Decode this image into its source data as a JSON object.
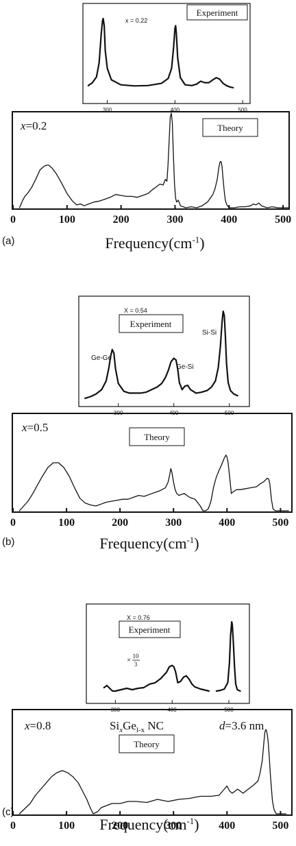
{
  "chart_data": [
    {
      "type": "line",
      "panel": "(a)",
      "role": "experiment",
      "sample_label": "x = 0.22",
      "box_label": "Experiment",
      "xlim": [
        265,
        510
      ],
      "xticks": [
        "300",
        "400",
        "500"
      ],
      "ylim": [
        0,
        1
      ],
      "grid": false,
      "series": [
        {
          "x": [
            272,
            278,
            284,
            288,
            291,
            293,
            294,
            295.5,
            297,
            300,
            306,
            320,
            340,
            360,
            380,
            390,
            395,
            398,
            400,
            401,
            402,
            404,
            408,
            415,
            425,
            432,
            438,
            444,
            450,
            456,
            461,
            466,
            471,
            476,
            481,
            486
          ],
          "y": [
            0.06,
            0.1,
            0.18,
            0.38,
            0.78,
            0.97,
            1.0,
            0.9,
            0.55,
            0.3,
            0.14,
            0.07,
            0.055,
            0.06,
            0.09,
            0.16,
            0.3,
            0.6,
            0.86,
            0.9,
            0.8,
            0.45,
            0.17,
            0.07,
            0.06,
            0.08,
            0.12,
            0.1,
            0.1,
            0.14,
            0.17,
            0.15,
            0.09,
            0.06,
            0.04,
            0.03
          ]
        }
      ]
    },
    {
      "type": "line",
      "panel": "(a)",
      "role": "theory",
      "sample_label": "x=0.2",
      "box_label": "Theory",
      "xlim": [
        0,
        510
      ],
      "xticks": [
        "0",
        "100",
        "200",
        "300",
        "400",
        "500"
      ],
      "xlabel": "Frequency(cm",
      "xlabel_sup": "-1",
      "xlabel_close": ")",
      "ylim": [
        0,
        1
      ],
      "grid": false,
      "series": [
        {
          "x": [
            12,
            18,
            22,
            28,
            35,
            42,
            50,
            58,
            62,
            66,
            72,
            80,
            90,
            100,
            110,
            118,
            125,
            132,
            140,
            150,
            160,
            170,
            180,
            190,
            200,
            210,
            220,
            230,
            240,
            250,
            258,
            265,
            272,
            278,
            282,
            285,
            287,
            289,
            291,
            293,
            295,
            297,
            299,
            301,
            303,
            306,
            310,
            320,
            330,
            340,
            350,
            360,
            365,
            370,
            374,
            378,
            381,
            383,
            385,
            387,
            389,
            391,
            393,
            396,
            400,
            410,
            420,
            430,
            440,
            445,
            450,
            455,
            460,
            470,
            480,
            490,
            500,
            510
          ],
          "y": [
            0.0,
            0.08,
            0.12,
            0.16,
            0.22,
            0.3,
            0.4,
            0.44,
            0.45,
            0.45,
            0.42,
            0.36,
            0.26,
            0.15,
            0.07,
            0.03,
            0.04,
            0.02,
            0.04,
            0.06,
            0.07,
            0.09,
            0.11,
            0.14,
            0.13,
            0.12,
            0.12,
            0.11,
            0.13,
            0.15,
            0.19,
            0.22,
            0.25,
            0.24,
            0.3,
            0.28,
            0.45,
            0.7,
            0.95,
            1.0,
            0.9,
            0.55,
            0.25,
            0.1,
            0.06,
            0.08,
            0.02,
            0.0,
            0.01,
            0.0,
            0.02,
            0.06,
            0.1,
            0.14,
            0.2,
            0.3,
            0.42,
            0.48,
            0.49,
            0.44,
            0.3,
            0.18,
            0.08,
            0.03,
            0.0,
            0.0,
            0.01,
            0.01,
            0.02,
            0.04,
            0.03,
            0.05,
            0.02,
            0.0,
            0.01,
            0.0,
            0.0,
            0.0
          ]
        }
      ]
    },
    {
      "type": "line",
      "panel": "(b)",
      "role": "experiment",
      "sample_label": "X = 0.54",
      "box_label": "Experiment",
      "peak_labels": [
        "Ge-Ge",
        "Ge-Si",
        "Si-Si"
      ],
      "xlim": [
        230,
        535
      ],
      "xticks": [
        "300",
        "400",
        "500"
      ],
      "ylim": [
        0,
        1
      ],
      "grid": false,
      "series": [
        {
          "x": [
            240,
            250,
            260,
            270,
            278,
            283,
            286,
            289,
            292,
            295,
            300,
            310,
            320,
            330,
            340,
            350,
            360,
            370,
            378,
            385,
            390,
            395,
            400,
            404,
            407,
            410,
            415,
            420,
            425,
            430,
            440,
            450,
            460,
            468,
            475,
            480,
            484,
            487,
            489,
            491,
            493,
            495,
            498,
            502,
            508,
            515
          ],
          "y": [
            0.0,
            0.02,
            0.05,
            0.1,
            0.2,
            0.35,
            0.48,
            0.56,
            0.52,
            0.34,
            0.17,
            0.08,
            0.06,
            0.06,
            0.06,
            0.07,
            0.1,
            0.13,
            0.17,
            0.24,
            0.32,
            0.42,
            0.46,
            0.44,
            0.34,
            0.18,
            0.1,
            0.14,
            0.15,
            0.1,
            0.06,
            0.07,
            0.09,
            0.13,
            0.2,
            0.35,
            0.6,
            0.88,
            1.0,
            0.95,
            0.7,
            0.4,
            0.18,
            0.09,
            0.05,
            0.03
          ]
        }
      ]
    },
    {
      "type": "line",
      "panel": "(b)",
      "role": "theory",
      "sample_label": "x=0.5",
      "box_label": "Theory",
      "xlim": [
        0,
        520
      ],
      "xticks": [
        "0",
        "100",
        "200",
        "300",
        "400",
        "500"
      ],
      "xlabel": "Frequency(cm",
      "xlabel_sup": "-1",
      "xlabel_close": ")",
      "ylim": [
        0,
        1
      ],
      "grid": false,
      "series": [
        {
          "x": [
            12,
            20,
            28,
            36,
            45,
            55,
            65,
            75,
            85,
            95,
            105,
            115,
            125,
            135,
            145,
            155,
            165,
            175,
            185,
            195,
            205,
            215,
            225,
            235,
            245,
            255,
            265,
            275,
            285,
            290,
            293,
            295,
            297,
            300,
            303,
            306,
            310,
            320,
            330,
            340,
            350,
            355,
            360,
            365,
            370,
            375,
            380,
            385,
            390,
            395,
            398,
            400,
            402,
            405,
            408,
            412,
            418,
            425,
            435,
            445,
            455,
            462,
            468,
            472,
            475,
            478,
            480,
            483,
            486,
            490,
            495,
            505,
            515
          ],
          "y": [
            0.0,
            0.05,
            0.1,
            0.17,
            0.26,
            0.36,
            0.45,
            0.5,
            0.5,
            0.45,
            0.36,
            0.24,
            0.13,
            0.08,
            0.06,
            0.05,
            0.07,
            0.09,
            0.1,
            0.11,
            0.12,
            0.12,
            0.14,
            0.16,
            0.15,
            0.17,
            0.19,
            0.21,
            0.24,
            0.3,
            0.38,
            0.44,
            0.4,
            0.3,
            0.22,
            0.18,
            0.16,
            0.18,
            0.14,
            0.12,
            0.05,
            0.0,
            0.0,
            0.02,
            0.1,
            0.25,
            0.35,
            0.42,
            0.48,
            0.55,
            0.58,
            0.56,
            0.5,
            0.35,
            0.18,
            0.2,
            0.22,
            0.22,
            0.23,
            0.24,
            0.25,
            0.28,
            0.3,
            0.32,
            0.34,
            0.33,
            0.28,
            0.12,
            0.02,
            0.0,
            0.0,
            0.0,
            0.0
          ]
        }
      ]
    },
    {
      "type": "line",
      "panel": "(c)",
      "role": "experiment",
      "sample_label": "X = 0.76",
      "box_label": "Experiment",
      "scale_prefix": "×",
      "scale_num": "10",
      "scale_den": "3",
      "xlim": [
        250,
        535
      ],
      "xticks": [
        "300",
        "400",
        "500"
      ],
      "ylim": [
        0,
        1
      ],
      "grid": false,
      "series": [
        {
          "x": [
            280,
            285,
            290,
            295,
            300,
            310,
            320,
            330,
            340,
            350,
            360,
            370,
            380,
            390,
            395,
            400,
            403,
            406,
            410,
            415,
            420,
            425,
            430,
            435,
            440,
            450,
            460,
            465
          ],
          "y": [
            0.05,
            0.08,
            0.04,
            0.0,
            0.0,
            0.02,
            0.04,
            0.02,
            0.04,
            0.05,
            0.1,
            0.12,
            0.18,
            0.27,
            0.35,
            0.37,
            0.35,
            0.28,
            0.12,
            0.14,
            0.2,
            0.22,
            0.17,
            0.1,
            0.06,
            0.03,
            0.01,
            0.0
          ]
        },
        {
          "x": [
            478,
            485,
            492,
            498,
            501,
            503,
            505,
            506,
            508,
            510,
            512,
            515,
            520
          ],
          "y": [
            0.0,
            0.01,
            0.03,
            0.12,
            0.4,
            0.8,
            1.0,
            0.96,
            0.7,
            0.35,
            0.1,
            0.02,
            0.0
          ]
        }
      ]
    },
    {
      "type": "line",
      "panel": "(c)",
      "role": "theory",
      "sample_label": "x=0.8",
      "box_label": "Theory",
      "title": {
        "prefix": "Si",
        "sub1": "x",
        "mid": "Ge",
        "sub2": "l-x",
        "suffix": " NC",
        "d_var": "d",
        "d_value": "=3.6 nm"
      },
      "xlim": [
        0,
        520
      ],
      "xticks": [
        "0",
        "100",
        "200",
        "300",
        "400",
        "500"
      ],
      "xlabel": "Frequency(cm",
      "xlabel_sup": "-1",
      "xlabel_close": ")",
      "ylim": [
        0,
        1
      ],
      "grid": false,
      "series": [
        {
          "x": [
            12,
            22,
            32,
            42,
            52,
            62,
            72,
            82,
            92,
            102,
            112,
            122,
            130,
            138,
            145,
            150,
            158,
            165,
            175,
            185,
            200,
            215,
            230,
            250,
            270,
            290,
            310,
            330,
            350,
            370,
            385,
            395,
            400,
            405,
            410,
            420,
            430,
            440,
            450,
            458,
            462,
            466,
            469,
            471,
            473,
            475,
            477,
            479,
            481,
            483,
            485,
            488,
            492,
            500,
            510
          ],
          "y": [
            0.0,
            0.05,
            0.1,
            0.18,
            0.24,
            0.3,
            0.36,
            0.4,
            0.42,
            0.4,
            0.36,
            0.3,
            0.22,
            0.14,
            0.05,
            0.0,
            0.02,
            0.06,
            0.08,
            0.1,
            0.1,
            0.12,
            0.12,
            0.11,
            0.14,
            0.12,
            0.14,
            0.15,
            0.17,
            0.17,
            0.18,
            0.24,
            0.27,
            0.22,
            0.2,
            0.24,
            0.2,
            0.24,
            0.28,
            0.32,
            0.4,
            0.52,
            0.7,
            0.8,
            0.82,
            0.78,
            0.7,
            0.55,
            0.38,
            0.25,
            0.12,
            0.04,
            0.0,
            0.0,
            0.0
          ]
        }
      ]
    }
  ],
  "panels": [
    {
      "letter": "(a)",
      "xlabel": "Frequency(cm",
      "xlabel_sup": "-1",
      "xlabel_close": ")"
    },
    {
      "letter": "(b)",
      "xlabel": "Frequency(cm",
      "xlabel_sup": "-1",
      "xlabel_close": ")"
    },
    {
      "letter": "(c)",
      "xlabel": "Frequency(cm",
      "xlabel_sup": "-1",
      "xlabel_close": ")"
    }
  ]
}
